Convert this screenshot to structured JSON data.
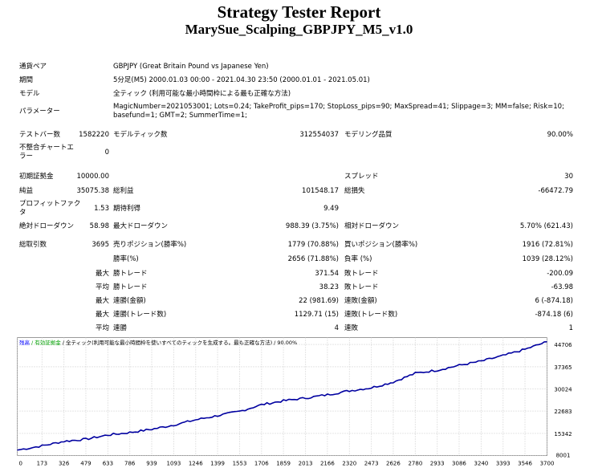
{
  "header": {
    "title": "Strategy Tester Report",
    "subtitle": "MarySue_Scalping_GBPJPY_M5_v1.0"
  },
  "info": {
    "symbol_label": "通貨ペア",
    "symbol_value": "GBPJPY (Great Britain Pound vs Japanese Yen)",
    "period_label": "期間",
    "period_value": "5分足(M5) 2000.01.03 00:00 - 2021.04.30 23:50 (2000.01.01 - 2021.05.01)",
    "model_label": "モデル",
    "model_value": "全ティック (利用可能な最小時間枠による最も正確な方法)",
    "params_label": "パラメーター",
    "params_line1": "MagicNumber=2021053001; Lots=0.24; TakeProfit_pips=170; StopLoss_pips=90; MaxSpread=41; Slippage=3; MM=false; Risk=10;",
    "params_line2": "basefund=1; GMT=2; SummerTime=1;"
  },
  "stats": {
    "bars_label": "テストバー数",
    "bars_value": "1582220",
    "ticks_label": "モデルティック数",
    "ticks_value": "312554037",
    "quality_label": "モデリング品質",
    "quality_value": "90.00%",
    "mismatch_label_1": "不整合チャートエ",
    "mismatch_label_2": "ラー",
    "mismatch_value": "0",
    "deposit_label": "初期証拠金",
    "deposit_value": "10000.00",
    "spread_label": "スプレッド",
    "spread_value": "30",
    "net_label": "純益",
    "net_value": "35075.38",
    "gross_profit_label": "総利益",
    "gross_profit_value": "101548.17",
    "gross_loss_label": "総損失",
    "gross_loss_value": "-66472.79",
    "pf_label_1": "プロフィットファク",
    "pf_label_2": "タ",
    "pf_value": "1.53",
    "expected_label": "期待利得",
    "expected_value": "9.49",
    "abs_dd_label": "絶対ドローダウン",
    "abs_dd_value": "58.98",
    "max_dd_label": "最大ドローダウン",
    "max_dd_value": "988.39 (3.75%)",
    "rel_dd_label": "相対ドローダウン",
    "rel_dd_value": "5.70% (621.43)",
    "trades_label": "総取引数",
    "trades_value": "3695",
    "short_label": "売りポジション(勝率%)",
    "short_value": "1779 (70.88%)",
    "long_label": "買いポジション(勝率%)",
    "long_value": "1916 (72.81%)",
    "win_label": "勝率(%)",
    "win_value": "2656 (71.88%)",
    "loss_label": "負率 (%)",
    "loss_value": "1039 (28.12%)",
    "max_prefix": "最大",
    "avg_prefix": "平均",
    "largest_win_label": "勝トレード",
    "largest_win_value": "371.54",
    "largest_loss_label": "敗トレード",
    "largest_loss_value": "-200.09",
    "avg_win_label": "勝トレード",
    "avg_win_value": "38.23",
    "avg_loss_label": "敗トレード",
    "avg_loss_value": "-63.98",
    "cons_win_amt_label": "連勝(金額)",
    "cons_win_amt_value": "22 (981.69)",
    "cons_loss_amt_label": "連敗(金額)",
    "cons_loss_amt_value": "6 (-874.18)",
    "cons_win_cnt_label": "連勝(トレード数)",
    "cons_win_cnt_value": "1129.71 (15)",
    "cons_loss_cnt_label": "連敗(トレード数)",
    "cons_loss_cnt_value": "-874.18 (6)",
    "avg_cons_win_label": "連勝",
    "avg_cons_win_value": "4",
    "avg_cons_loss_label": "連敗",
    "avg_cons_loss_value": "1"
  },
  "chart_legend": {
    "balance": "残高",
    "margin": "/ 有効証拠金",
    "rest": "/ 全ティック(利用可能な最小時間枠を使いすべてのティックを生成する。最も正確な方法) / 90.00%",
    "balance_color": "#0000ff",
    "margin_color": "#00a000"
  },
  "chart_data": {
    "type": "line",
    "series": [],
    "x_ticks": [
      "0",
      "173",
      "326",
      "479",
      "633",
      "786",
      "939",
      "1093",
      "1246",
      "1399",
      "1553",
      "1706",
      "1859",
      "2013",
      "2166",
      "2320",
      "2473",
      "2626",
      "2780",
      "2933",
      "3086",
      "3240",
      "3393",
      "3546",
      "3700"
    ],
    "y_ticks": [
      "44706",
      "37365",
      "30024",
      "22683",
      "15342",
      "8001"
    ],
    "xlim": [
      0,
      3700
    ],
    "ylim": [
      8001,
      47000
    ],
    "grid": true,
    "line_color": "#0000a0",
    "anchors": [
      [
        0,
        9800
      ],
      [
        173,
        11200
      ],
      [
        326,
        12700
      ],
      [
        479,
        13400
      ],
      [
        633,
        14800
      ],
      [
        786,
        15600
      ],
      [
        939,
        16700
      ],
      [
        1093,
        18100
      ],
      [
        1246,
        19800
      ],
      [
        1399,
        21200
      ],
      [
        1553,
        22600
      ],
      [
        1706,
        24800
      ],
      [
        1859,
        26100
      ],
      [
        2013,
        27000
      ],
      [
        2166,
        28100
      ],
      [
        2320,
        29400
      ],
      [
        2473,
        30400
      ],
      [
        2626,
        32300
      ],
      [
        2780,
        35200
      ],
      [
        2933,
        36200
      ],
      [
        3086,
        37800
      ],
      [
        3240,
        39200
      ],
      [
        3393,
        41000
      ],
      [
        3546,
        43100
      ],
      [
        3700,
        45600
      ]
    ]
  }
}
